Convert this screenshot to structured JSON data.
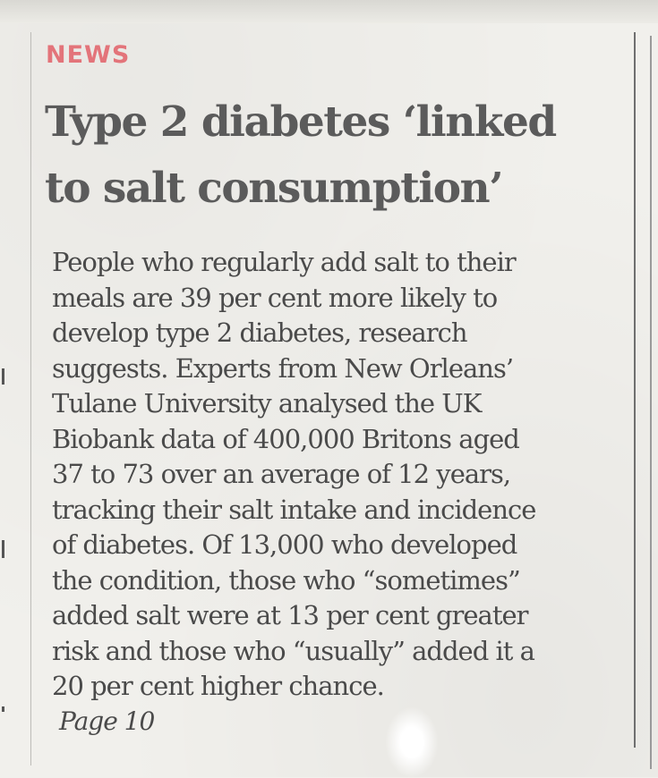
{
  "article": {
    "kicker": "NEWS",
    "headline_lines": [
      "Type 2 diabetes ‘linked",
      "to salt consumption’"
    ],
    "body_lines": [
      "People who regularly add salt to their",
      "meals are 39 per cent more likely to",
      "develop type 2 diabetes, research",
      "suggests. Experts from New Orleans’",
      "Tulane University analysed the UK",
      "Biobank data of 400,000 Britons aged",
      "37 to 73 over an average of 12 years,",
      "tracking their salt intake and incidence",
      "of diabetes. Of 13,000 who developed",
      "the condition, those who “sometimes”",
      "added salt were at 13 per cent greater",
      "risk and those who “usually” added it a",
      "20 per cent higher chance."
    ],
    "page_ref": "Page 10"
  },
  "colors": {
    "kicker": "#e3747a",
    "headline": "#5b5b5b",
    "body": "#4a4a4a",
    "paper": "#f1f0ec"
  }
}
